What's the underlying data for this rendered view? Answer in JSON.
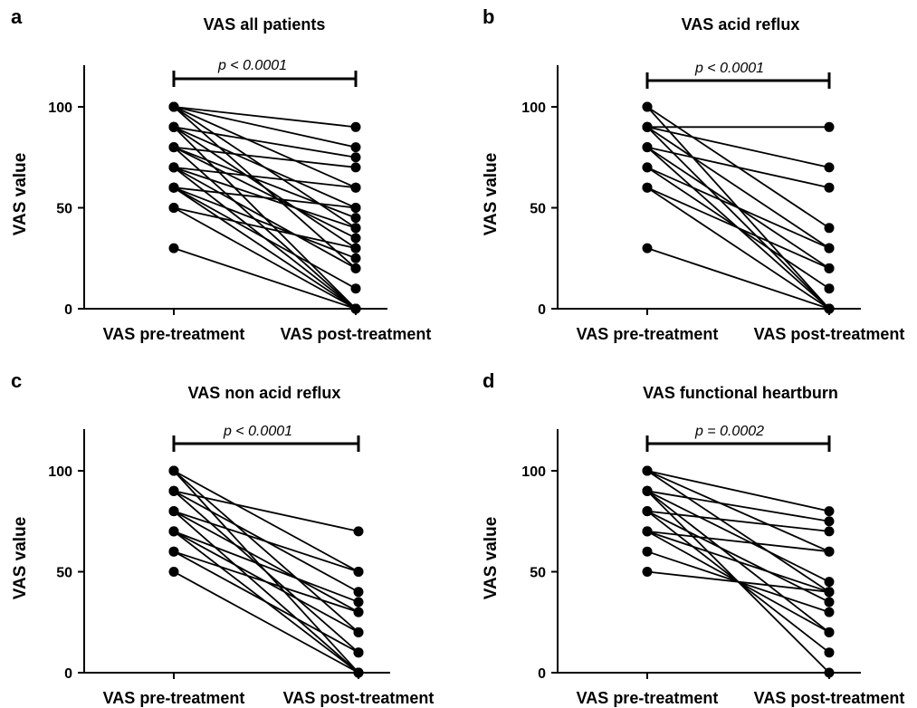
{
  "chart_data": [
    {
      "panel": "a",
      "type": "line",
      "title": "VAS all patients",
      "xlabel": "",
      "ylabel": "VAS value",
      "categories": [
        "VAS pre-treatment",
        "VAS post-treatment"
      ],
      "ylim": [
        0,
        120
      ],
      "yticks": [
        0,
        50,
        100
      ],
      "annotation": "p < 0.0001",
      "grid": false,
      "pairs": [
        [
          100,
          90
        ],
        [
          100,
          80
        ],
        [
          100,
          60
        ],
        [
          100,
          40
        ],
        [
          100,
          20
        ],
        [
          90,
          75
        ],
        [
          90,
          50
        ],
        [
          90,
          30
        ],
        [
          90,
          0
        ],
        [
          80,
          70
        ],
        [
          80,
          45
        ],
        [
          80,
          35
        ],
        [
          80,
          0
        ],
        [
          70,
          60
        ],
        [
          70,
          40
        ],
        [
          70,
          20
        ],
        [
          70,
          0
        ],
        [
          60,
          50
        ],
        [
          60,
          25
        ],
        [
          60,
          10
        ],
        [
          60,
          0
        ],
        [
          50,
          30
        ],
        [
          50,
          0
        ],
        [
          30,
          0
        ]
      ]
    },
    {
      "panel": "b",
      "type": "line",
      "title": "VAS acid reflux",
      "xlabel": "",
      "ylabel": "VAS value",
      "categories": [
        "VAS pre-treatment",
        "VAS post-treatment"
      ],
      "ylim": [
        0,
        120
      ],
      "yticks": [
        0,
        50,
        100
      ],
      "annotation": "p < 0.0001",
      "grid": false,
      "pairs": [
        [
          100,
          40
        ],
        [
          100,
          0
        ],
        [
          90,
          90
        ],
        [
          90,
          70
        ],
        [
          90,
          30
        ],
        [
          90,
          0
        ],
        [
          80,
          60
        ],
        [
          80,
          20
        ],
        [
          80,
          0
        ],
        [
          70,
          30
        ],
        [
          70,
          10
        ],
        [
          60,
          20
        ],
        [
          60,
          0
        ],
        [
          30,
          0
        ]
      ]
    },
    {
      "panel": "c",
      "type": "line",
      "title": "VAS non acid reflux",
      "xlabel": "",
      "ylabel": "VAS value",
      "categories": [
        "VAS pre-treatment",
        "VAS post-treatment"
      ],
      "ylim": [
        0,
        120
      ],
      "yticks": [
        0,
        50,
        100
      ],
      "annotation": "p < 0.0001",
      "grid": false,
      "pairs": [
        [
          100,
          50
        ],
        [
          100,
          20
        ],
        [
          100,
          0
        ],
        [
          90,
          70
        ],
        [
          90,
          40
        ],
        [
          90,
          10
        ],
        [
          80,
          50
        ],
        [
          80,
          30
        ],
        [
          80,
          0
        ],
        [
          70,
          35
        ],
        [
          70,
          20
        ],
        [
          70,
          0
        ],
        [
          60,
          30
        ],
        [
          60,
          10
        ],
        [
          50,
          0
        ]
      ]
    },
    {
      "panel": "d",
      "type": "line",
      "title": "VAS functional heartburn",
      "xlabel": "",
      "ylabel": "VAS value",
      "categories": [
        "VAS pre-treatment",
        "VAS post-treatment"
      ],
      "ylim": [
        0,
        120
      ],
      "yticks": [
        0,
        50,
        100
      ],
      "annotation": "p = 0.0002",
      "grid": false,
      "pairs": [
        [
          100,
          80
        ],
        [
          100,
          60
        ],
        [
          100,
          40
        ],
        [
          90,
          75
        ],
        [
          90,
          45
        ],
        [
          90,
          20
        ],
        [
          90,
          0
        ],
        [
          80,
          70
        ],
        [
          80,
          35
        ],
        [
          80,
          10
        ],
        [
          70,
          60
        ],
        [
          70,
          40
        ],
        [
          70,
          20
        ],
        [
          60,
          30
        ],
        [
          50,
          40
        ]
      ]
    }
  ]
}
